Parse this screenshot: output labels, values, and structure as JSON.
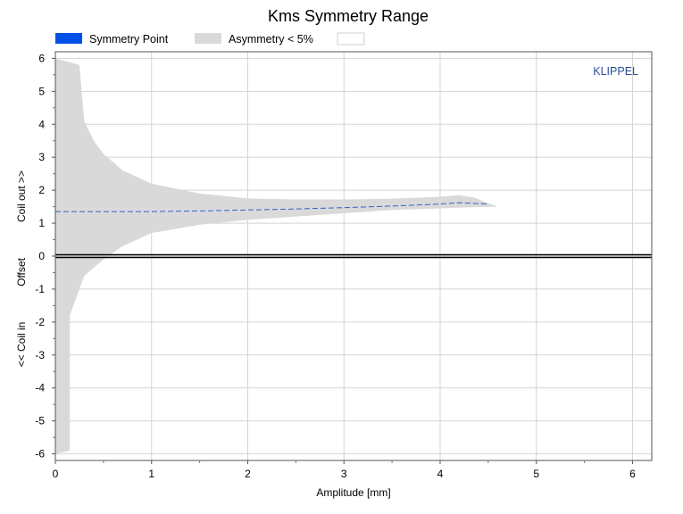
{
  "chart_data": {
    "type": "area",
    "title": "Kms Symmetry Range",
    "xlabel": "Amplitude [mm]",
    "ylabel_parts": [
      "Coil out >>",
      "Offset",
      "<< Coil in"
    ],
    "xlim": [
      0,
      6.2
    ],
    "ylim": [
      -6.2,
      6.2
    ],
    "x_ticks": [
      "0",
      "1",
      "2",
      "3",
      "4",
      "5",
      "6"
    ],
    "y_ticks": [
      "6",
      "5",
      "4",
      "3",
      "2",
      "1",
      "0",
      "-1",
      "-2",
      "-3",
      "-4",
      "-5",
      "-6"
    ],
    "grid": true,
    "legend_position": "top",
    "legend": [
      {
        "label": "Symmetry Point",
        "color": "#0050e6"
      },
      {
        "label": "Asymmetry < 5%",
        "color": "#d9d9d9"
      },
      {
        "label": "",
        "color": "#ffffff"
      }
    ],
    "brand_text": "KLIPPEL",
    "brand_color": "#2a4f9a",
    "zero_line": 0,
    "series": [
      {
        "name": "Asymmetry < 5%",
        "kind": "band",
        "upper": [
          [
            0,
            6.0
          ],
          [
            0.25,
            5.8
          ],
          [
            0.3,
            4.1
          ],
          [
            0.4,
            3.5
          ],
          [
            0.5,
            3.1
          ],
          [
            0.7,
            2.6
          ],
          [
            1.0,
            2.2
          ],
          [
            1.5,
            1.9
          ],
          [
            2.0,
            1.75
          ],
          [
            2.5,
            1.72
          ],
          [
            3.0,
            1.72
          ],
          [
            3.5,
            1.74
          ],
          [
            4.0,
            1.8
          ],
          [
            4.2,
            1.85
          ],
          [
            4.35,
            1.78
          ],
          [
            4.55,
            1.55
          ],
          [
            4.6,
            1.5
          ]
        ],
        "lower": [
          [
            0,
            -6.0
          ],
          [
            0.15,
            -5.9
          ],
          [
            0.15,
            -1.8
          ],
          [
            0.3,
            -0.6
          ],
          [
            0.5,
            -0.1
          ],
          [
            0.7,
            0.3
          ],
          [
            1.0,
            0.7
          ],
          [
            1.5,
            0.95
          ],
          [
            2.0,
            1.1
          ],
          [
            2.5,
            1.2
          ],
          [
            3.0,
            1.3
          ],
          [
            3.5,
            1.4
          ],
          [
            4.0,
            1.45
          ],
          [
            4.3,
            1.48
          ],
          [
            4.6,
            1.5
          ]
        ]
      },
      {
        "name": "Symmetry Point",
        "kind": "line",
        "points": [
          [
            0,
            1.35
          ],
          [
            0.5,
            1.35
          ],
          [
            1.0,
            1.35
          ],
          [
            1.5,
            1.37
          ],
          [
            2.0,
            1.4
          ],
          [
            2.5,
            1.43
          ],
          [
            3.0,
            1.47
          ],
          [
            3.5,
            1.52
          ],
          [
            4.0,
            1.58
          ],
          [
            4.2,
            1.62
          ],
          [
            4.5,
            1.58
          ]
        ]
      }
    ]
  }
}
